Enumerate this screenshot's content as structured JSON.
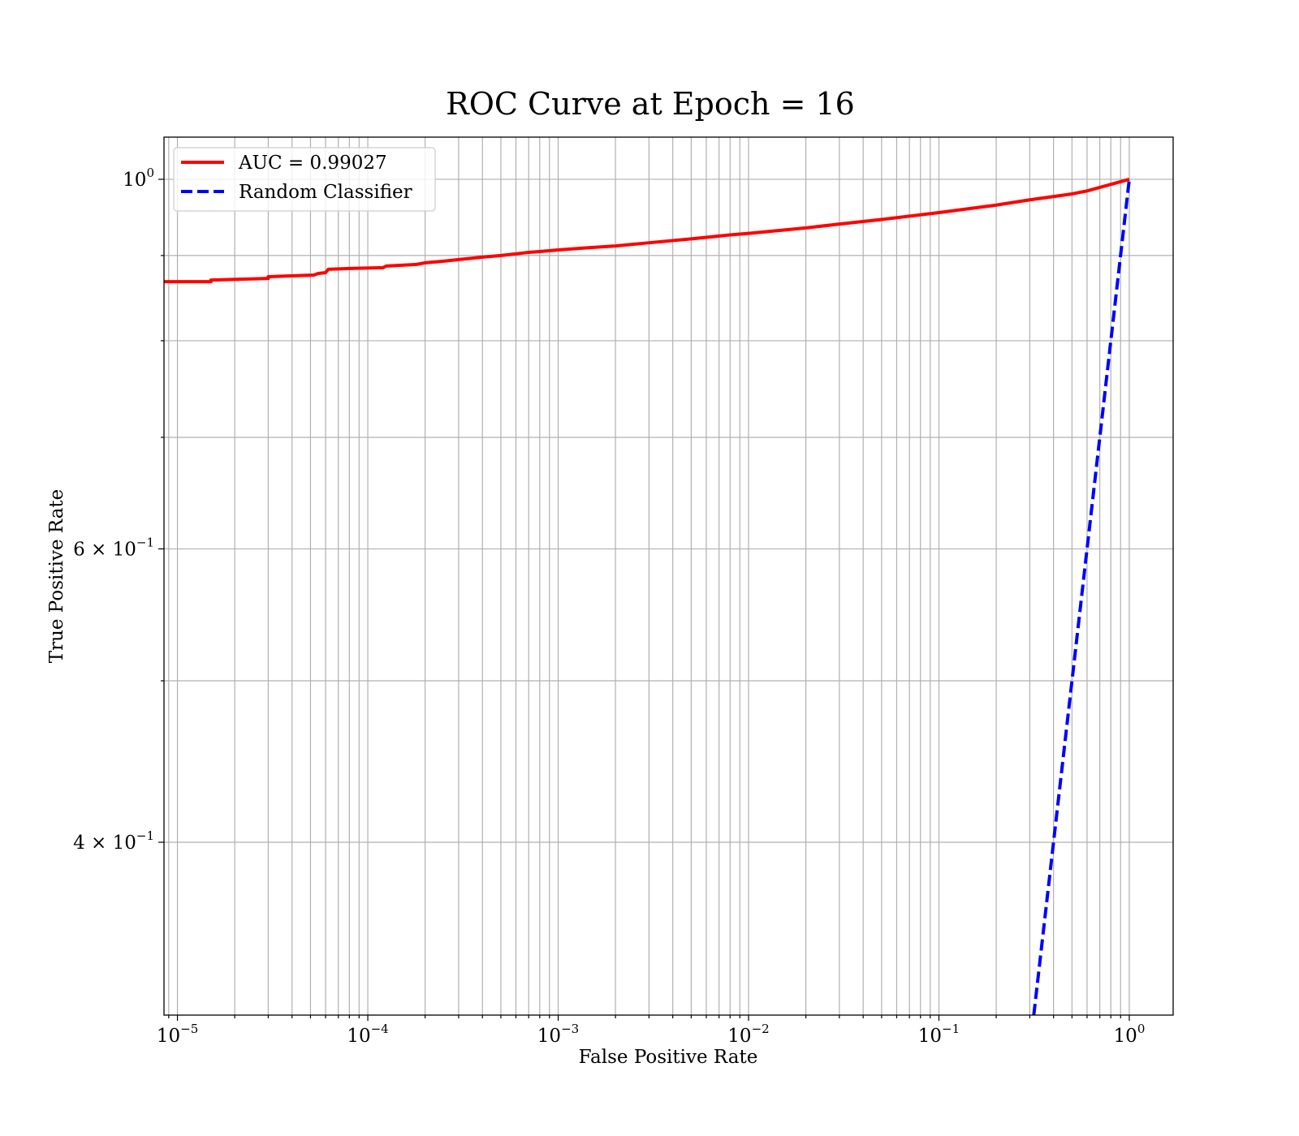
{
  "chart_data": {
    "type": "line",
    "title": "ROC Curve at Epoch = 16",
    "xlabel": "False Positive Rate",
    "ylabel": "True Positive Rate",
    "xscale": "log",
    "yscale": "log",
    "xlim": [
      8.5e-06,
      1.7
    ],
    "ylim": [
      0.315,
      1.06
    ],
    "grid": "both",
    "legend": "upper-left",
    "xticks": [
      {
        "value": 1e-05,
        "base": "10",
        "exp": "−5"
      },
      {
        "value": 0.0001,
        "base": "10",
        "exp": "−4"
      },
      {
        "value": 0.001,
        "base": "10",
        "exp": "−3"
      },
      {
        "value": 0.01,
        "base": "10",
        "exp": "−2"
      },
      {
        "value": 0.1,
        "base": "10",
        "exp": "−1"
      },
      {
        "value": 1,
        "base": "10",
        "exp": "0"
      }
    ],
    "yticks": [
      {
        "value": 0.4,
        "base": "4 × 10",
        "exp": "−1"
      },
      {
        "value": 0.6,
        "base": "6 × 10",
        "exp": "−1"
      },
      {
        "value": 1.0,
        "base": "10",
        "exp": "0"
      }
    ],
    "series": [
      {
        "name": "AUC = 0.99027",
        "color": "#ff0000",
        "style": "solid",
        "x": [
          8.5e-06,
          1.5e-05,
          1.5e-05,
          3e-05,
          3e-05,
          5.2e-05,
          5.5e-05,
          6e-05,
          6.2e-05,
          8e-05,
          0.00012,
          0.000125,
          0.00015,
          0.00018,
          0.0002,
          0.00025,
          0.0003,
          0.0004,
          0.0005,
          0.0006,
          0.0007,
          0.0008,
          0.001,
          0.0015,
          0.002,
          0.003,
          0.005,
          0.008,
          0.01,
          0.02,
          0.03,
          0.05,
          0.1,
          0.2,
          0.3,
          0.5,
          0.6,
          1.0
        ],
        "y": [
          0.868,
          0.868,
          0.87,
          0.872,
          0.874,
          0.876,
          0.878,
          0.879,
          0.883,
          0.884,
          0.885,
          0.887,
          0.888,
          0.889,
          0.891,
          0.893,
          0.895,
          0.898,
          0.9,
          0.902,
          0.904,
          0.905,
          0.907,
          0.91,
          0.912,
          0.916,
          0.921,
          0.926,
          0.928,
          0.935,
          0.94,
          0.946,
          0.955,
          0.965,
          0.972,
          0.98,
          0.984,
          1.0
        ]
      },
      {
        "name": "Random Classifier",
        "color": "#0000ff",
        "style": "dashed",
        "x": [
          0.315,
          1.0
        ],
        "y": [
          0.315,
          1.0
        ]
      }
    ]
  }
}
